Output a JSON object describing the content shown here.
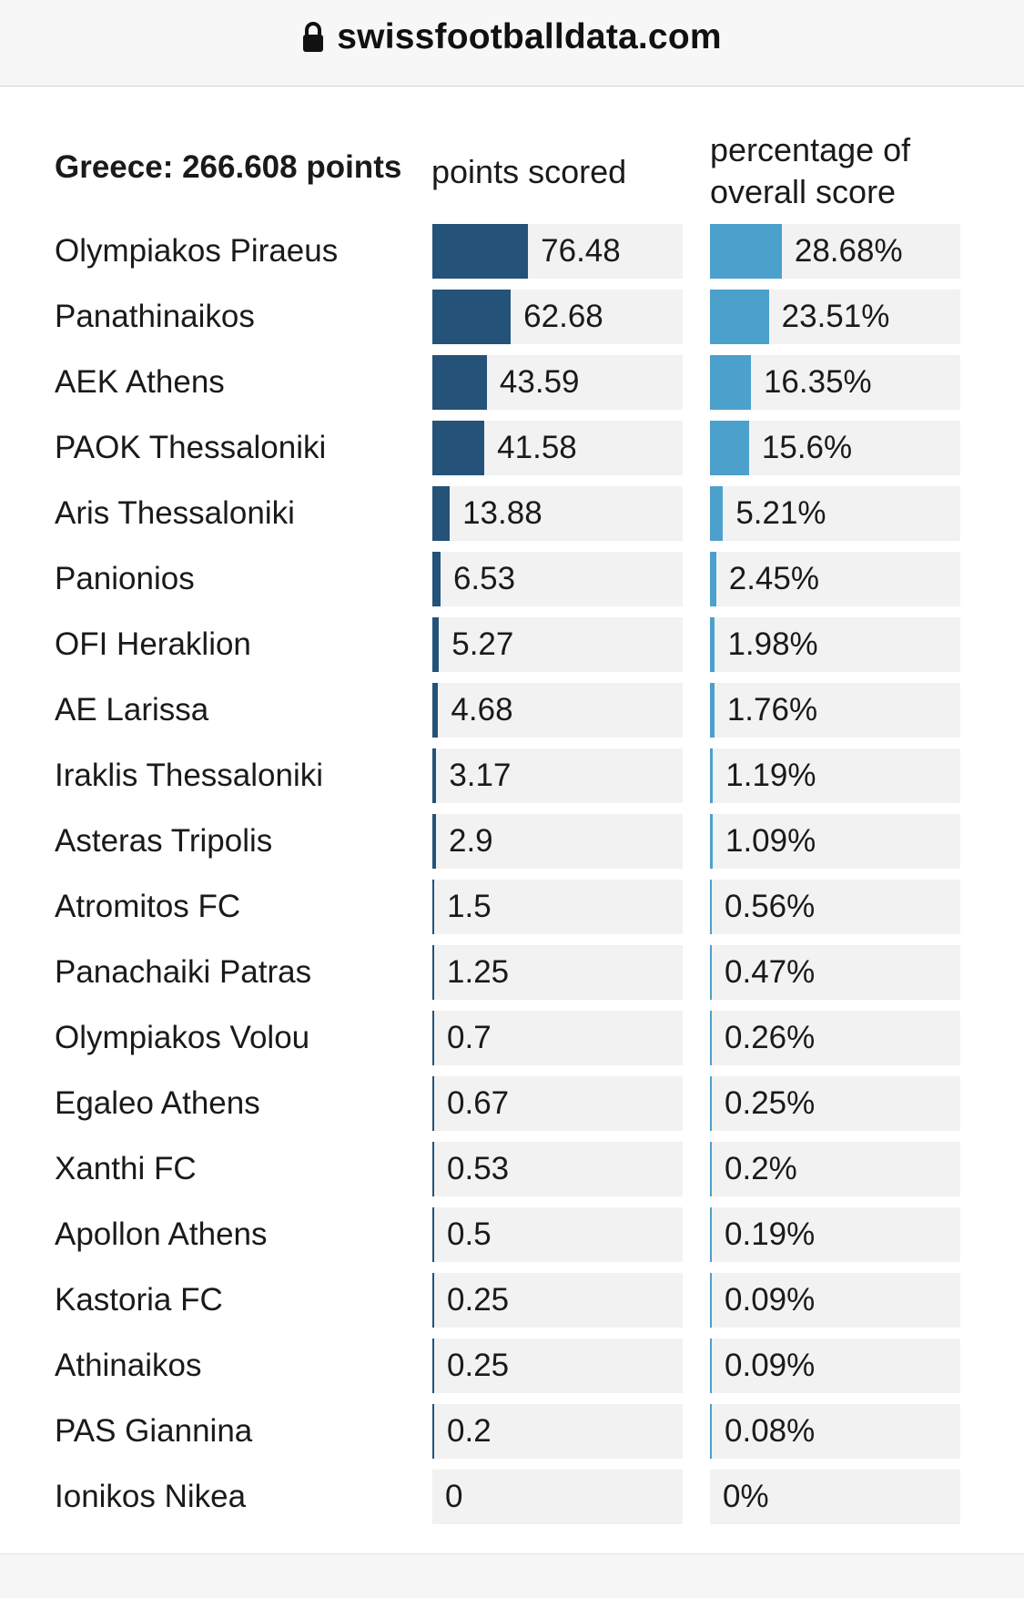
{
  "browser": {
    "url": "swissfootballdata.com",
    "lock_icon": "lock-icon"
  },
  "header": {
    "title": "Greece: 266.608 points",
    "col_points": "points scored",
    "col_pct_line1": "percentage of",
    "col_pct_line2": "overall score"
  },
  "colors": {
    "points_bar": "#245278",
    "pct_bar": "#4ca0cc",
    "track": "#f2f2f2"
  },
  "chart_data": {
    "type": "bar",
    "title": "Greece: 266.608 points",
    "series": [
      {
        "name": "points scored",
        "values": [
          76.48,
          62.68,
          43.59,
          41.58,
          13.88,
          6.53,
          5.27,
          4.68,
          3.17,
          2.9,
          1.5,
          1.25,
          0.7,
          0.67,
          0.53,
          0.5,
          0.25,
          0.25,
          0.2,
          0
        ],
        "labels": [
          "76.48",
          "62.68",
          "43.59",
          "41.58",
          "13.88",
          "6.53",
          "5.27",
          "4.68",
          "3.17",
          "2.9",
          "1.5",
          "1.25",
          "0.7",
          "0.67",
          "0.53",
          "0.5",
          "0.25",
          "0.25",
          "0.2",
          "0"
        ]
      },
      {
        "name": "percentage of overall score",
        "values": [
          28.68,
          23.51,
          16.35,
          15.6,
          5.21,
          2.45,
          1.98,
          1.76,
          1.19,
          1.09,
          0.56,
          0.47,
          0.26,
          0.25,
          0.2,
          0.19,
          0.09,
          0.09,
          0.08,
          0
        ],
        "labels": [
          "28.68%",
          "23.51%",
          "16.35%",
          "15.6%",
          "5.21%",
          "2.45%",
          "1.98%",
          "1.76%",
          "1.19%",
          "1.09%",
          "0.56%",
          "0.47%",
          "0.26%",
          "0.25%",
          "0.2%",
          "0.19%",
          "0.09%",
          "0.09%",
          "0.08%",
          "0%"
        ]
      }
    ],
    "categories": [
      "Olympiakos Piraeus",
      "Panathinaikos",
      "AEK Athens",
      "PAOK Thessaloniki",
      "Aris Thessaloniki",
      "Panionios",
      "OFI Heraklion",
      "AE Larissa",
      "Iraklis Thessaloniki",
      "Asteras Tripolis",
      "Atromitos FC",
      "Panachaiki Patras",
      "Olympiakos Volou",
      "Egaleo Athens",
      "Xanthi FC",
      "Apollon Athens",
      "Kastoria FC",
      "Athinaikos",
      "PAS Giannina",
      "Ionikos Nikea"
    ],
    "points_max": 200,
    "pct_max": 100
  }
}
